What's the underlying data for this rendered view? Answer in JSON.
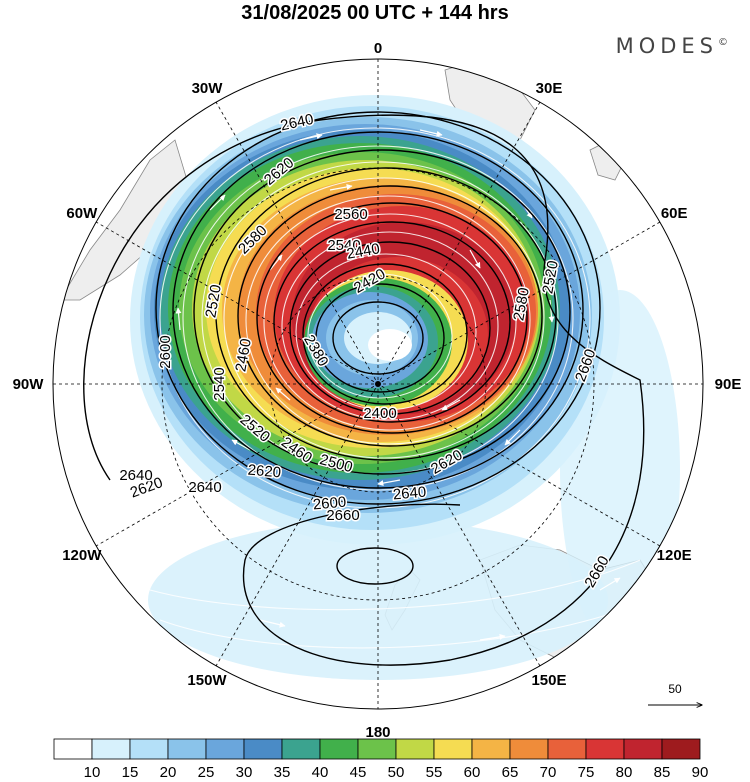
{
  "title": "31/08/2025  00 UTC  + 144 hrs",
  "brand": "MODES",
  "brand_mark": "©",
  "meridians": [
    {
      "label": "0",
      "lon": 0
    },
    {
      "label": "30E",
      "lon": 30
    },
    {
      "label": "60E",
      "lon": 60
    },
    {
      "label": "90E",
      "lon": 90
    },
    {
      "label": "120E",
      "lon": 120
    },
    {
      "label": "150E",
      "lon": 150
    },
    {
      "label": "180",
      "lon": 180
    },
    {
      "label": "150W",
      "lon": -150
    },
    {
      "label": "120W",
      "lon": -120
    },
    {
      "label": "90W",
      "lon": -90
    },
    {
      "label": "60W",
      "lon": -60
    },
    {
      "label": "30W",
      "lon": -30
    }
  ],
  "contour_labels": [
    "2640",
    "2620",
    "2580",
    "2560",
    "2520",
    "2540",
    "2440",
    "2420",
    "2460",
    "2400",
    "2380",
    "2600",
    "2620",
    "2540",
    "2520",
    "2460",
    "2500",
    "2620",
    "2600",
    "2640",
    "2660",
    "2660",
    "2660",
    "2640",
    "2640",
    "2620",
    "2580",
    "2520"
  ],
  "colorbar": {
    "ticks": [
      "10",
      "15",
      "20",
      "25",
      "30",
      "35",
      "40",
      "45",
      "50",
      "55",
      "60",
      "65",
      "70",
      "75",
      "80",
      "85",
      "90"
    ],
    "colors": [
      "#ffffff",
      "#d7f1fc",
      "#b4e0f8",
      "#8ac3ea",
      "#6aa6dc",
      "#4a8bc6",
      "#3ba38f",
      "#41b04b",
      "#6cc24a",
      "#c1d846",
      "#f5dc52",
      "#f4b445",
      "#ef8c3a",
      "#e8613a",
      "#d93535",
      "#c0242f",
      "#9e1b1e"
    ]
  },
  "wind_reference": {
    "label": "50"
  }
}
